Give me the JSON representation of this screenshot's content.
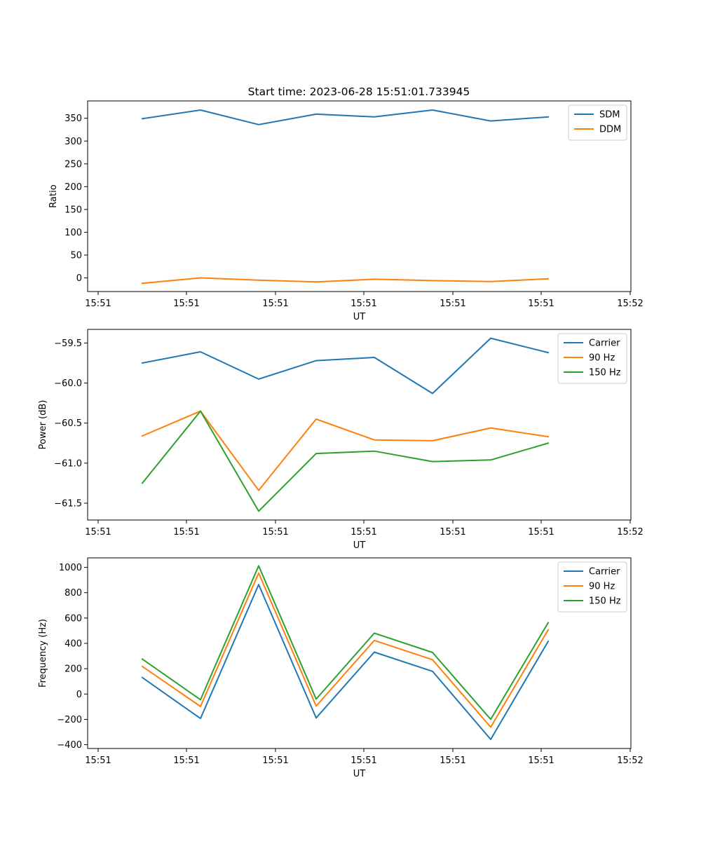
{
  "figure": {
    "title": "Start time: 2023-06-28 15:51:01.733945"
  },
  "chart_data": [
    {
      "type": "line",
      "title": "",
      "xlabel": "UT",
      "ylabel": "Ratio",
      "x_ticks": [
        "15:51",
        "15:51",
        "15:51",
        "15:51",
        "15:51",
        "15:51",
        "15:52"
      ],
      "y_ticks": [
        0,
        50,
        100,
        150,
        200,
        250,
        300,
        350
      ],
      "ylim": [
        -30,
        388
      ],
      "grid": false,
      "legend_position": "top-right",
      "series": [
        {
          "name": "SDM",
          "color": "#1f77b4",
          "values": [
            349,
            368,
            336,
            359,
            353,
            368,
            344,
            353
          ]
        },
        {
          "name": "DDM",
          "color": "#ff7f0e",
          "values": [
            -12,
            0,
            -5,
            -9,
            -3,
            -6,
            -8,
            -2
          ]
        }
      ]
    },
    {
      "type": "line",
      "title": "",
      "xlabel": "UT",
      "ylabel": "Power (dB)",
      "x_ticks": [
        "15:51",
        "15:51",
        "15:51",
        "15:51",
        "15:51",
        "15:51",
        "15:52"
      ],
      "y_ticks": [
        -61.5,
        -61.0,
        -60.5,
        -60.0,
        -59.5
      ],
      "y_tick_labels": [
        "−61.5",
        "−61.0",
        "−60.5",
        "−60.0",
        "−59.5"
      ],
      "ylim": [
        -61.71,
        -59.33
      ],
      "grid": false,
      "legend_position": "top-right",
      "series": [
        {
          "name": "Carrier",
          "color": "#1f77b4",
          "values": [
            -59.75,
            -59.61,
            -59.95,
            -59.72,
            -59.68,
            -60.13,
            -59.44,
            -59.62
          ]
        },
        {
          "name": "90 Hz",
          "color": "#ff7f0e",
          "values": [
            -60.66,
            -60.35,
            -61.34,
            -60.45,
            -60.71,
            -60.72,
            -60.56,
            -60.67
          ]
        },
        {
          "name": "150 Hz",
          "color": "#2ca02c",
          "values": [
            -61.25,
            -60.35,
            -61.6,
            -60.88,
            -60.85,
            -60.98,
            -60.96,
            -60.75
          ]
        }
      ]
    },
    {
      "type": "line",
      "title": "",
      "xlabel": "UT",
      "ylabel": "Frequency (Hz)",
      "x_ticks": [
        "15:51",
        "15:51",
        "15:51",
        "15:51",
        "15:51",
        "15:51",
        "15:52"
      ],
      "y_ticks": [
        -400,
        -200,
        0,
        200,
        400,
        600,
        800,
        1000
      ],
      "y_tick_labels": [
        "−400",
        "−200",
        "0",
        "200",
        "400",
        "600",
        "800",
        "1000"
      ],
      "ylim": [
        -430,
        1075
      ],
      "grid": false,
      "legend_position": "top-right",
      "series": [
        {
          "name": "Carrier",
          "color": "#1f77b4",
          "values": [
            130,
            -193,
            864,
            -189,
            331,
            179,
            -358,
            416
          ]
        },
        {
          "name": "90 Hz",
          "color": "#ff7f0e",
          "values": [
            218,
            -98,
            955,
            -95,
            423,
            271,
            -262,
            507
          ]
        },
        {
          "name": "150 Hz",
          "color": "#2ca02c",
          "values": [
            276,
            -45,
            1012,
            -40,
            481,
            328,
            -200,
            563
          ]
        }
      ]
    }
  ]
}
